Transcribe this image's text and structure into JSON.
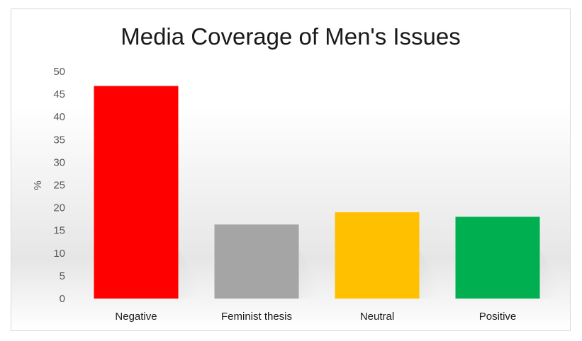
{
  "chart_data": {
    "type": "bar",
    "title": "Media Coverage of Men's Issues",
    "xlabel": "",
    "ylabel": "%",
    "categories": [
      "Negative",
      "Feminist thesis",
      "Neutral",
      "Positive"
    ],
    "values": [
      46.8,
      16.3,
      19.0,
      18.0
    ],
    "colors": [
      "#ff0000",
      "#a5a5a5",
      "#ffc000",
      "#00b050"
    ],
    "ylim": [
      0,
      50
    ],
    "yticks": [
      0,
      5,
      10,
      15,
      20,
      25,
      30,
      35,
      40,
      45,
      50
    ],
    "grid": false,
    "legend": "none"
  }
}
